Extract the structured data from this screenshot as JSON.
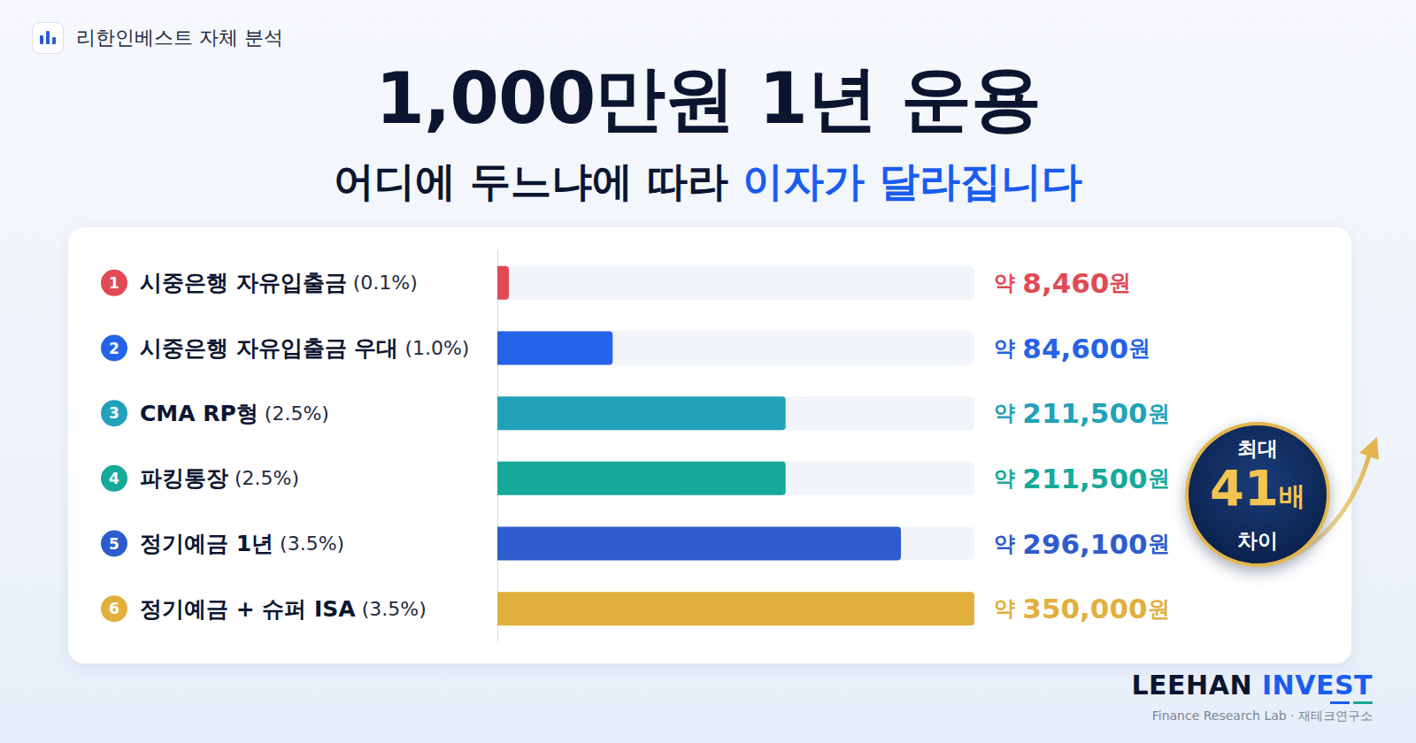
{
  "header": {
    "label": "리한인베스트 자체 분석",
    "title": "1,000만원 1년 운용",
    "subtitle": "어디에 두느냐에 따라 ",
    "subtitle_highlight": "이자가 달라집니다"
  },
  "chart_data": {
    "type": "bar",
    "orientation": "horizontal",
    "categories": [
      "시중은행 자유입출금 (0.1%)",
      "시중은행 자유입출금 우대 (1.0%)",
      "CMA RP형 (2.5%)",
      "파킹통장 (2.5%)",
      "정기예금 1년 (3.5%)",
      "정기예금 + 슈퍼 ISA (3.5%)"
    ],
    "rank": [
      1,
      2,
      3,
      4,
      5,
      6
    ],
    "values": [
      8460,
      84600,
      211500,
      211500,
      296100,
      350000
    ],
    "value_labels": [
      "약 8,460원",
      "약 84,600원",
      "약 211,500원",
      "약 211,500원",
      "약 296,100원",
      "약 350,000원"
    ],
    "colors": [
      "#e04a55",
      "#2563e8",
      "#22a2b8",
      "#16a99a",
      "#2d5ccc",
      "#e1b03c"
    ],
    "xlim": [
      0,
      350000
    ],
    "tick_labels": false,
    "grid": false,
    "data_labels": true
  },
  "badge": {
    "top": "최대",
    "value": "41배",
    "bottom": "차이"
  },
  "footer": {
    "brand": "LEEHAN",
    "brand_highlight": "INVEST",
    "caption": "Finance Research Lab · 재테크연구소"
  }
}
